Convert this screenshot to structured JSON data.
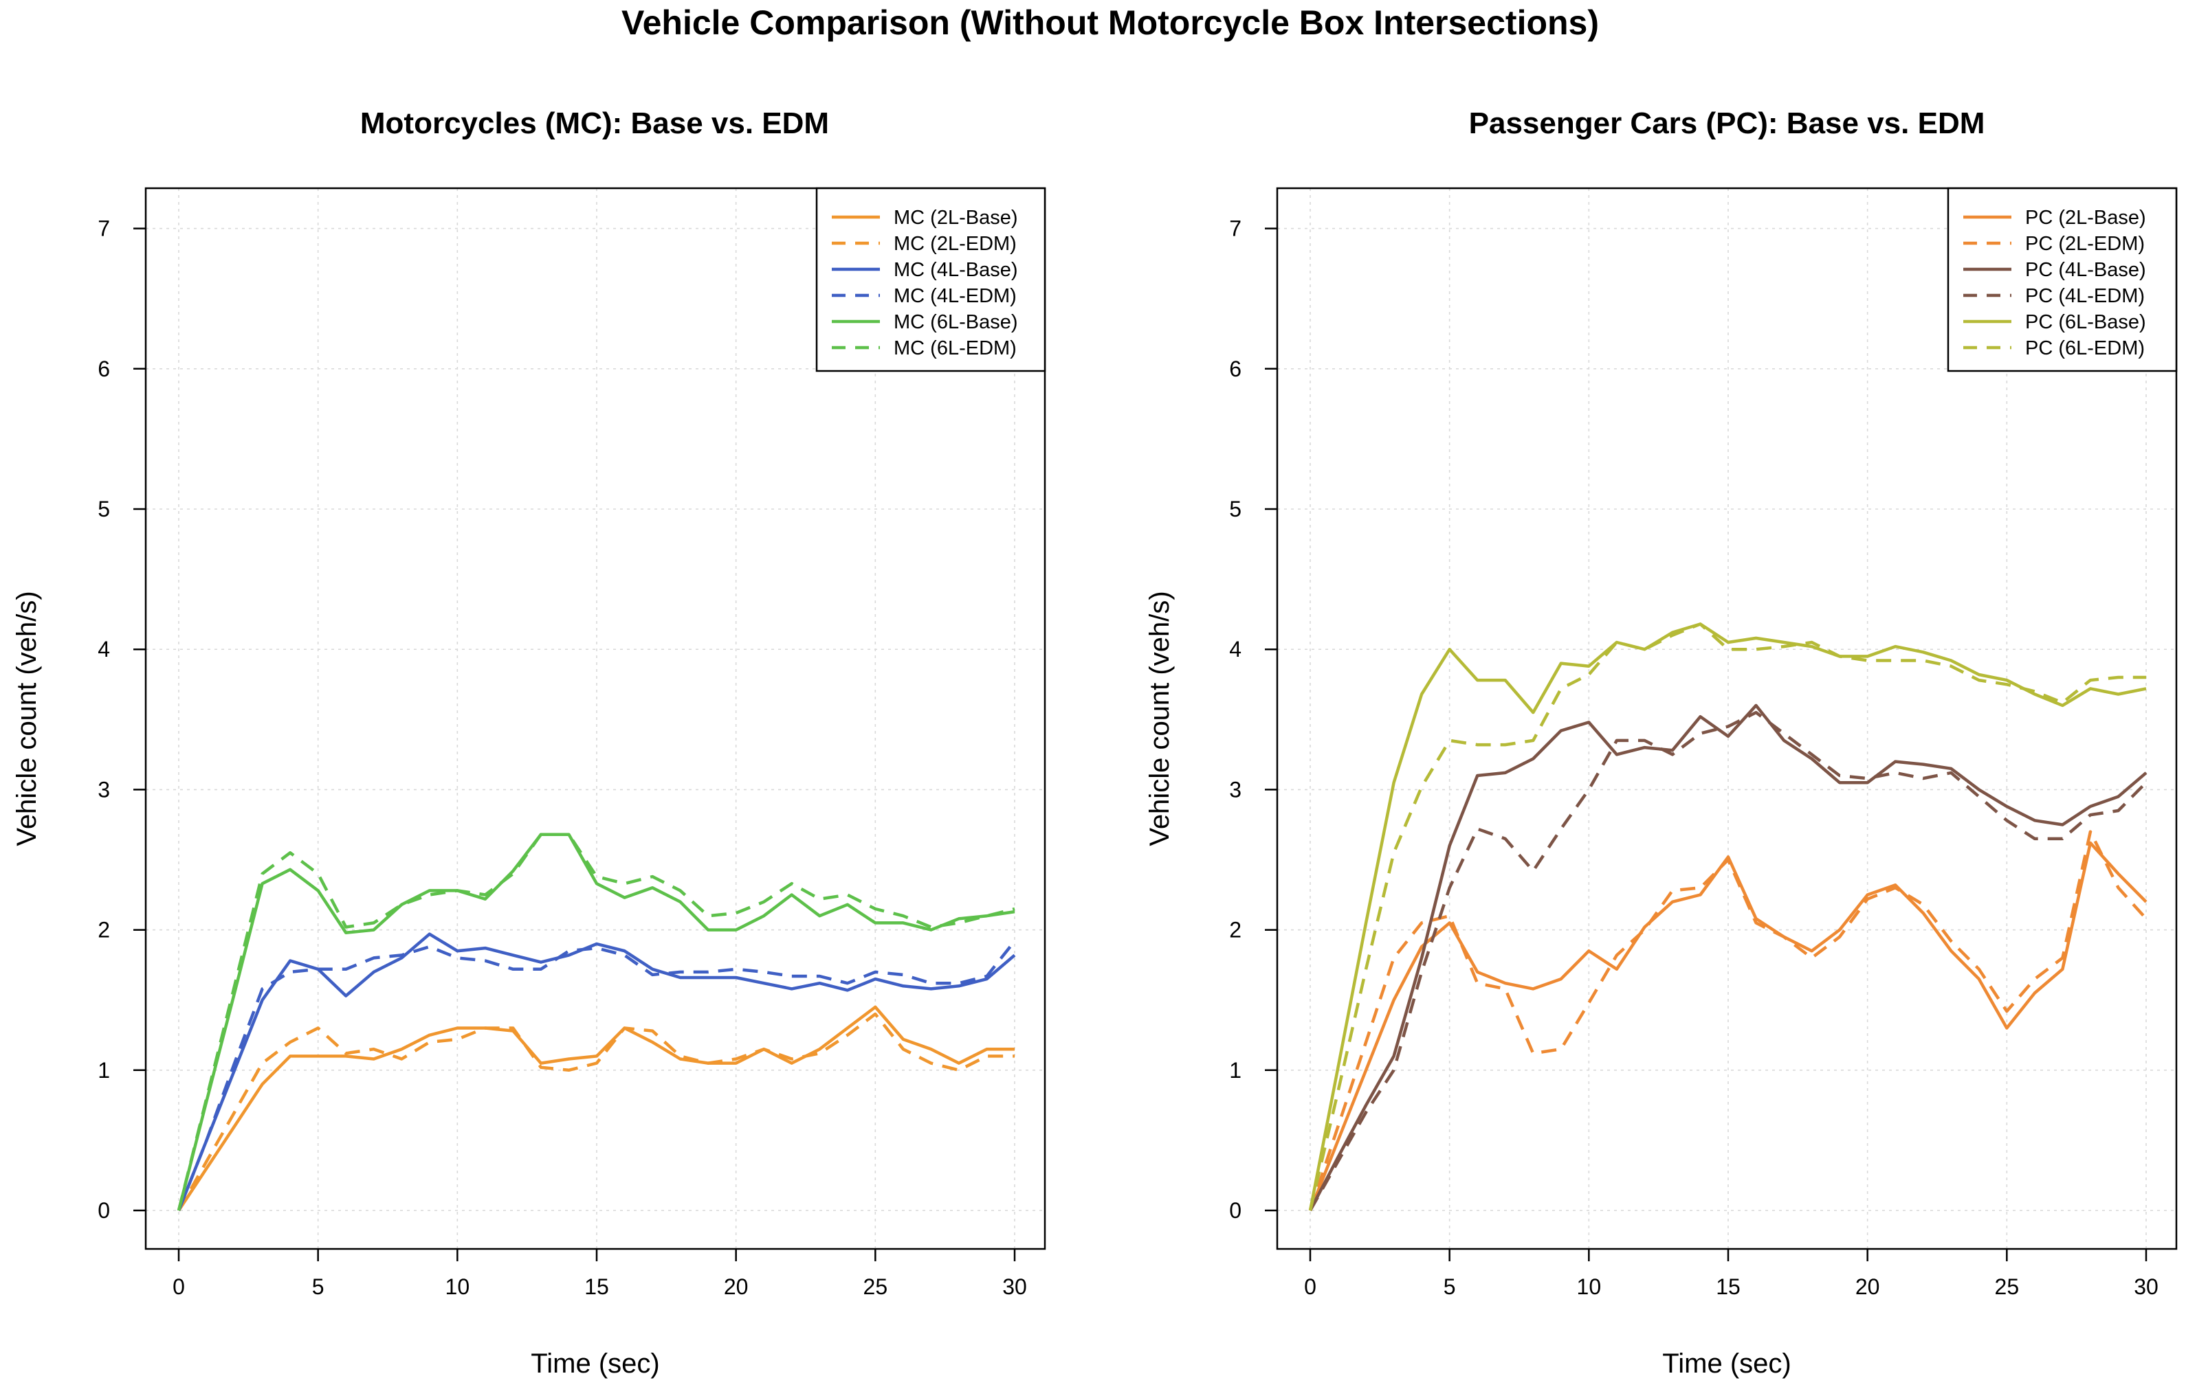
{
  "figure_title": "Vehicle Comparison (Without Motorcycle Box Intersections)",
  "chart_data": [
    {
      "type": "line",
      "title": "Motorcycles (MC): Base vs. EDM",
      "xlabel": "Time (sec)",
      "ylabel": "Vehicle count (veh/s)",
      "xlim": [
        0,
        30
      ],
      "ylim": [
        0,
        7
      ],
      "xticks": [
        "0",
        "5",
        "10",
        "15",
        "20",
        "25",
        "30"
      ],
      "yticks": [
        "0",
        "1",
        "2",
        "3",
        "4",
        "5",
        "6",
        "7"
      ],
      "grid": true,
      "legend_position": "top-right",
      "x": [
        0,
        1,
        2,
        3,
        4,
        5,
        6,
        7,
        8,
        9,
        10,
        11,
        12,
        13,
        14,
        15,
        16,
        17,
        18,
        19,
        20,
        21,
        22,
        23,
        24,
        25,
        26,
        27,
        28,
        29,
        30
      ],
      "series": [
        {
          "name": "MC (2L-Base)",
          "color": "#F0962E",
          "dash": "solid",
          "values": [
            0,
            0.3,
            0.6,
            0.9,
            1.1,
            1.1,
            1.1,
            1.08,
            1.15,
            1.25,
            1.3,
            1.3,
            1.28,
            1.05,
            1.08,
            1.1,
            1.3,
            1.2,
            1.08,
            1.05,
            1.05,
            1.15,
            1.05,
            1.15,
            1.3,
            1.45,
            1.22,
            1.15,
            1.05,
            1.15,
            1.15
          ]
        },
        {
          "name": "MC (2L-EDM)",
          "color": "#F0962E",
          "dash": "dashed",
          "values": [
            0,
            0.35,
            0.7,
            1.05,
            1.2,
            1.3,
            1.12,
            1.15,
            1.08,
            1.2,
            1.22,
            1.3,
            1.3,
            1.02,
            1.0,
            1.05,
            1.3,
            1.28,
            1.1,
            1.05,
            1.08,
            1.15,
            1.08,
            1.12,
            1.25,
            1.4,
            1.15,
            1.05,
            1.0,
            1.1,
            1.1
          ]
        },
        {
          "name": "MC (4L-Base)",
          "color": "#3F5FC4",
          "dash": "solid",
          "values": [
            0,
            0.5,
            1.0,
            1.5,
            1.78,
            1.72,
            1.53,
            1.7,
            1.8,
            1.97,
            1.85,
            1.87,
            1.82,
            1.77,
            1.82,
            1.9,
            1.85,
            1.72,
            1.66,
            1.66,
            1.66,
            1.62,
            1.58,
            1.62,
            1.57,
            1.65,
            1.6,
            1.58,
            1.6,
            1.65,
            1.82
          ]
        },
        {
          "name": "MC (4L-EDM)",
          "color": "#3F5FC4",
          "dash": "dashed",
          "values": [
            0,
            0.5,
            1.05,
            1.58,
            1.7,
            1.72,
            1.72,
            1.8,
            1.82,
            1.88,
            1.8,
            1.78,
            1.72,
            1.72,
            1.85,
            1.87,
            1.82,
            1.68,
            1.7,
            1.7,
            1.72,
            1.7,
            1.67,
            1.67,
            1.62,
            1.7,
            1.68,
            1.62,
            1.62,
            1.67,
            1.92
          ]
        },
        {
          "name": "MC (6L-Base)",
          "color": "#5DC04A",
          "dash": "solid",
          "values": [
            0,
            0.78,
            1.55,
            2.33,
            2.43,
            2.28,
            1.98,
            2.0,
            2.18,
            2.28,
            2.28,
            2.22,
            2.42,
            2.68,
            2.68,
            2.33,
            2.23,
            2.3,
            2.2,
            2.0,
            2.0,
            2.1,
            2.25,
            2.1,
            2.18,
            2.05,
            2.05,
            2.0,
            2.08,
            2.1,
            2.13
          ]
        },
        {
          "name": "MC (6L-EDM)",
          "color": "#5DC04A",
          "dash": "dashed",
          "values": [
            0,
            0.8,
            1.6,
            2.4,
            2.55,
            2.4,
            2.02,
            2.05,
            2.18,
            2.25,
            2.28,
            2.25,
            2.4,
            2.68,
            2.68,
            2.38,
            2.33,
            2.38,
            2.28,
            2.1,
            2.12,
            2.2,
            2.33,
            2.22,
            2.25,
            2.15,
            2.1,
            2.02,
            2.05,
            2.1,
            2.15
          ]
        }
      ]
    },
    {
      "type": "line",
      "title": "Passenger Cars (PC): Base vs. EDM",
      "xlabel": "Time (sec)",
      "ylabel": "Vehicle count (veh/s)",
      "xlim": [
        0,
        30
      ],
      "ylim": [
        0,
        7
      ],
      "xticks": [
        "0",
        "5",
        "10",
        "15",
        "20",
        "25",
        "30"
      ],
      "yticks": [
        "0",
        "1",
        "2",
        "3",
        "4",
        "5",
        "6",
        "7"
      ],
      "grid": true,
      "legend_position": "top-right",
      "x": [
        0,
        1,
        2,
        3,
        4,
        5,
        6,
        7,
        8,
        9,
        10,
        11,
        12,
        13,
        14,
        15,
        16,
        17,
        18,
        19,
        20,
        21,
        22,
        23,
        24,
        25,
        26,
        27,
        28,
        29,
        30
      ],
      "series": [
        {
          "name": "PC (2L-Base)",
          "color": "#EE8933",
          "dash": "solid",
          "values": [
            0,
            0.5,
            1.0,
            1.5,
            1.88,
            2.05,
            1.7,
            1.62,
            1.58,
            1.65,
            1.85,
            1.72,
            2.02,
            2.2,
            2.25,
            2.52,
            2.08,
            1.95,
            1.85,
            2.0,
            2.25,
            2.32,
            2.12,
            1.85,
            1.65,
            1.3,
            1.55,
            1.72,
            2.62,
            2.4,
            2.2
          ]
        },
        {
          "name": "PC (2L-EDM)",
          "color": "#EE8933",
          "dash": "dashed",
          "values": [
            0,
            0.6,
            1.2,
            1.8,
            2.05,
            2.1,
            1.62,
            1.58,
            1.12,
            1.15,
            1.48,
            1.82,
            2.0,
            2.28,
            2.3,
            2.5,
            2.05,
            1.95,
            1.8,
            1.95,
            2.22,
            2.3,
            2.18,
            1.92,
            1.72,
            1.42,
            1.65,
            1.8,
            2.7,
            2.3,
            2.08
          ]
        },
        {
          "name": "PC (4L-Base)",
          "color": "#7D5446",
          "dash": "solid",
          "values": [
            0,
            0.38,
            0.75,
            1.1,
            1.8,
            2.6,
            3.1,
            3.12,
            3.22,
            3.42,
            3.48,
            3.25,
            3.3,
            3.28,
            3.52,
            3.38,
            3.6,
            3.35,
            3.22,
            3.05,
            3.05,
            3.2,
            3.18,
            3.15,
            3.0,
            2.88,
            2.78,
            2.75,
            2.88,
            2.95,
            3.12
          ]
        },
        {
          "name": "PC (4L-EDM)",
          "color": "#7D5446",
          "dash": "dashed",
          "values": [
            0,
            0.35,
            0.7,
            1.0,
            1.7,
            2.3,
            2.72,
            2.65,
            2.42,
            2.72,
            3.0,
            3.35,
            3.35,
            3.25,
            3.4,
            3.45,
            3.55,
            3.4,
            3.25,
            3.1,
            3.08,
            3.12,
            3.08,
            3.12,
            2.95,
            2.78,
            2.65,
            2.65,
            2.82,
            2.85,
            3.05
          ]
        },
        {
          "name": "PC (6L-Base)",
          "color": "#B5BA37",
          "dash": "solid",
          "values": [
            0,
            1.02,
            2.05,
            3.05,
            3.68,
            4.0,
            3.78,
            3.78,
            3.55,
            3.9,
            3.88,
            4.05,
            4.0,
            4.12,
            4.18,
            4.05,
            4.08,
            4.05,
            4.02,
            3.95,
            3.95,
            4.02,
            3.98,
            3.92,
            3.82,
            3.78,
            3.68,
            3.6,
            3.72,
            3.68,
            3.72
          ]
        },
        {
          "name": "PC (6L-EDM)",
          "color": "#B5BA37",
          "dash": "dashed",
          "values": [
            0,
            0.85,
            1.72,
            2.55,
            3.02,
            3.35,
            3.32,
            3.32,
            3.35,
            3.72,
            3.82,
            4.05,
            4.0,
            4.1,
            4.18,
            4.0,
            4.0,
            4.02,
            4.05,
            3.95,
            3.92,
            3.92,
            3.92,
            3.88,
            3.78,
            3.75,
            3.7,
            3.62,
            3.78,
            3.8,
            3.8
          ]
        }
      ]
    }
  ]
}
